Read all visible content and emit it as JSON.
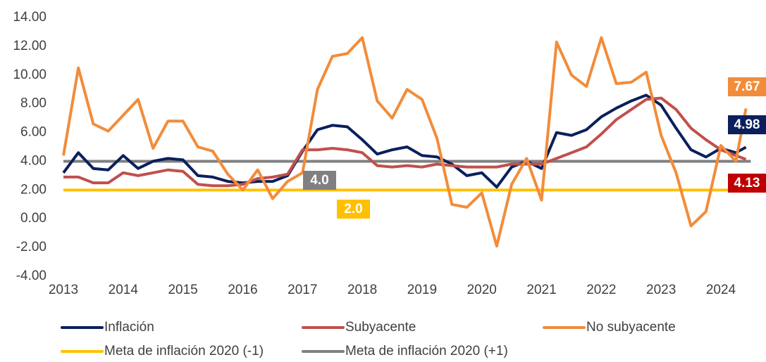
{
  "chart_data": {
    "type": "line",
    "x": [
      2013,
      2013.25,
      2013.5,
      2013.75,
      2014,
      2014.25,
      2014.5,
      2014.75,
      2015,
      2015.25,
      2015.5,
      2015.75,
      2016,
      2016.25,
      2016.5,
      2016.75,
      2017,
      2017.25,
      2017.5,
      2017.75,
      2018,
      2018.25,
      2018.5,
      2018.75,
      2019,
      2019.25,
      2019.5,
      2019.75,
      2020,
      2020.25,
      2020.5,
      2020.75,
      2021,
      2021.25,
      2021.5,
      2021.75,
      2022,
      2022.25,
      2022.5,
      2022.75,
      2023,
      2023.25,
      2023.5,
      2023.75,
      2024,
      2024.25,
      2024.42
    ],
    "series": [
      {
        "name": "Inflación",
        "color": "#0b1f5c",
        "label_color": "#0b1f5c",
        "values": [
          3.2,
          4.6,
          3.5,
          3.4,
          4.4,
          3.5,
          4.0,
          4.2,
          4.1,
          3.0,
          2.9,
          2.6,
          2.5,
          2.6,
          2.6,
          3.0,
          4.7,
          6.2,
          6.5,
          6.4,
          5.5,
          4.5,
          4.8,
          5.0,
          4.4,
          4.3,
          3.8,
          3.0,
          3.2,
          2.2,
          3.6,
          4.0,
          3.5,
          6.0,
          5.8,
          6.2,
          7.1,
          7.7,
          8.2,
          8.6,
          7.9,
          6.3,
          4.8,
          4.3,
          4.9,
          4.6,
          4.98
        ]
      },
      {
        "name": "Subyacente",
        "color": "#c0504d",
        "label_color": "#c00000",
        "values": [
          2.9,
          2.9,
          2.5,
          2.5,
          3.2,
          3.0,
          3.2,
          3.4,
          3.3,
          2.4,
          2.3,
          2.3,
          2.4,
          2.8,
          2.9,
          3.1,
          4.8,
          4.8,
          4.9,
          4.8,
          4.6,
          3.7,
          3.6,
          3.7,
          3.6,
          3.8,
          3.7,
          3.6,
          3.6,
          3.6,
          3.8,
          3.8,
          3.8,
          4.2,
          4.6,
          5.0,
          5.9,
          6.9,
          7.6,
          8.3,
          8.4,
          7.6,
          6.3,
          5.5,
          4.8,
          4.4,
          4.13
        ]
      },
      {
        "name": "No subyacente",
        "color": "#f28c3a",
        "label_color": "#f28c3a",
        "values": [
          4.4,
          10.5,
          6.6,
          6.1,
          7.2,
          8.3,
          4.9,
          6.8,
          6.8,
          5.0,
          4.7,
          3.1,
          2.0,
          3.4,
          1.4,
          2.6,
          3.2,
          9.0,
          11.3,
          11.5,
          12.6,
          8.2,
          7.0,
          9.0,
          8.3,
          5.6,
          1.0,
          0.8,
          1.8,
          -1.9,
          2.4,
          4.2,
          1.3,
          12.3,
          10.0,
          9.2,
          12.6,
          9.4,
          9.5,
          10.2,
          5.8,
          3.2,
          -0.5,
          0.5,
          5.1,
          4.0,
          7.67
        ]
      }
    ],
    "reference_lines": [
      {
        "name": "Meta de inflación 2020 (-1)",
        "color": "#ffc000",
        "value": 2,
        "value_label": "2.0"
      },
      {
        "name": "Meta de inflación 2020 (+1)",
        "color": "#808080",
        "value": 4,
        "value_label": "4.0"
      }
    ],
    "xlim": [
      2013,
      2024.5
    ],
    "xticks": [
      2013,
      2014,
      2015,
      2016,
      2017,
      2018,
      2019,
      2020,
      2021,
      2022,
      2023,
      2024
    ],
    "ylim": [
      -4,
      14
    ],
    "yticks": [
      {
        "value": -4,
        "label": "-4.00"
      },
      {
        "value": -2,
        "label": "-2.00"
      },
      {
        "value": 0,
        "label": "0.00"
      },
      {
        "value": 2,
        "label": "2.00"
      },
      {
        "value": 4,
        "label": "4.00"
      },
      {
        "value": 6,
        "label": "6.00"
      },
      {
        "value": 8,
        "label": "8.00"
      },
      {
        "value": 10,
        "label": "10.00"
      },
      {
        "value": 12,
        "label": "12.00"
      },
      {
        "value": 14,
        "label": "14.00"
      }
    ]
  }
}
